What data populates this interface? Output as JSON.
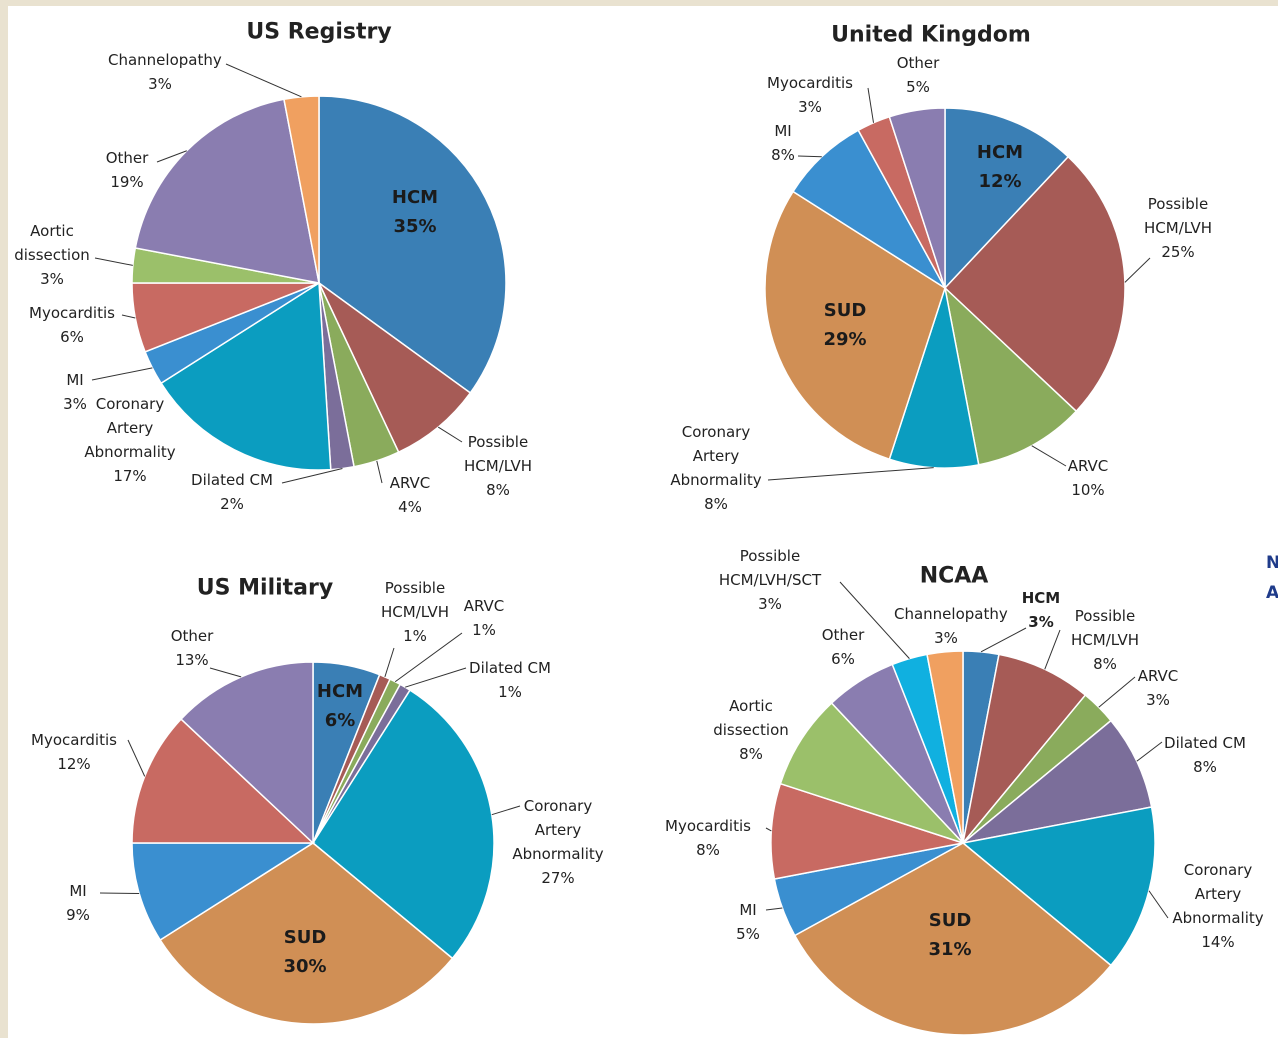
{
  "chart_data": [
    {
      "type": "pie",
      "title": "US Registry",
      "categories": [
        "HCM",
        "Possible HCM/LVH",
        "ARVC",
        "Dilated CM",
        "Coronary Artery Abnormality",
        "MI",
        "Myocarditis",
        "Aortic dissection",
        "Other",
        "Channelopathy"
      ],
      "values": [
        35,
        8,
        4,
        2,
        17,
        3,
        6,
        3,
        19,
        3
      ],
      "value_labels": [
        "35%",
        "8%",
        "4%",
        "2%",
        "17%",
        "3%",
        "6%",
        "3%",
        "19%",
        "3%"
      ],
      "colors": [
        "#3a7fb5",
        "#a65b56",
        "#8aab5c",
        "#7b6e9a",
        "#0b9dc0",
        "#3a8fd0",
        "#c86a62",
        "#9bc06a",
        "#8a7db0",
        "#f0a060"
      ]
    },
    {
      "type": "pie",
      "title": "United Kingdom",
      "categories": [
        "HCM",
        "Possible HCM/LVH",
        "ARVC",
        "Coronary Artery Abnormality",
        "SUD",
        "MI",
        "Myocarditis",
        "Other"
      ],
      "values": [
        12,
        25,
        10,
        8,
        29,
        8,
        3,
        5
      ],
      "value_labels": [
        "12%",
        "25%",
        "10%",
        "8%",
        "29%",
        "8%",
        "3%",
        "5%"
      ],
      "colors": [
        "#3a7fb5",
        "#a65b56",
        "#8aab5c",
        "#0b9dc0",
        "#d08f55",
        "#3a8fd0",
        "#c86a62",
        "#8a7db0"
      ]
    },
    {
      "type": "pie",
      "title": "US Military",
      "categories": [
        "HCM",
        "Possible HCM/LVH",
        "ARVC",
        "Dilated CM",
        "Coronary Artery Abnormality",
        "SUD",
        "MI",
        "Myocarditis",
        "Other"
      ],
      "values": [
        6,
        1,
        1,
        1,
        27,
        30,
        9,
        12,
        13
      ],
      "value_labels": [
        "6%",
        "1%",
        "1%",
        "1%",
        "27%",
        "30%",
        "9%",
        "12%",
        "13%"
      ],
      "colors": [
        "#3a7fb5",
        "#a65b56",
        "#8aab5c",
        "#7b6e9a",
        "#0b9dc0",
        "#d08f55",
        "#3a8fd0",
        "#c86a62",
        "#8a7db0"
      ]
    },
    {
      "type": "pie",
      "title": "NCAA",
      "categories": [
        "HCM",
        "Possible HCM/LVH",
        "ARVC",
        "Dilated CM",
        "Coronary Artery Abnormality",
        "SUD",
        "MI",
        "Myocarditis",
        "Aortic dissection",
        "Other",
        "Possible HCM/LVH/SCT",
        "Channelopathy"
      ],
      "values": [
        3,
        8,
        3,
        8,
        14,
        31,
        5,
        8,
        8,
        6,
        3,
        3
      ],
      "value_labels": [
        "3%",
        "8%",
        "3%",
        "8%",
        "14%",
        "31%",
        "5%",
        "8%",
        "8%",
        "6%",
        "3%",
        "3%"
      ],
      "colors": [
        "#3a7fb5",
        "#a65b56",
        "#8aab5c",
        "#7b6e9a",
        "#0b9dc0",
        "#d08f55",
        "#3a8fd0",
        "#c86a62",
        "#9bc06a",
        "#8a7db0",
        "#10b0e0",
        "#f0a060"
      ]
    }
  ],
  "edge_text": [
    "N",
    "A"
  ]
}
